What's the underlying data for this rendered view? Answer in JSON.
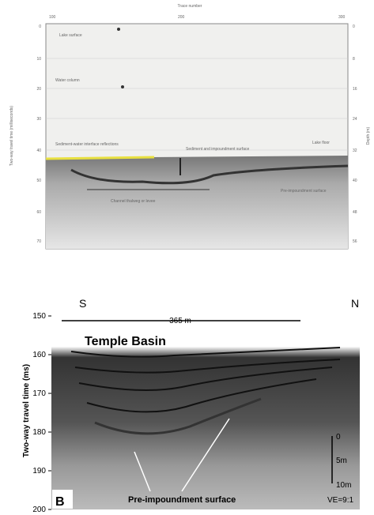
{
  "panel_a": {
    "title": "Trace number",
    "x_ticks": [
      "100",
      "200",
      "300"
    ],
    "y_label": "Two-way travel time (milliseconds)",
    "y_ticks": [
      "0",
      "10",
      "20",
      "30",
      "40",
      "50",
      "60",
      "70"
    ],
    "y2_label": "Depth (m)",
    "y2_ticks": [
      "0",
      "8",
      "16",
      "24",
      "32",
      "40",
      "48",
      "56"
    ],
    "annotations": [
      "Lake surface",
      "Water column",
      "Sediment-water interface reflections",
      "Sediment and impoundment surface",
      "Lake floor",
      "Pre-impoundment surface",
      "Channel thalweg or levee"
    ]
  },
  "panel_b": {
    "panel_letter": "B",
    "left": "S",
    "right": "N",
    "distance": "365 m",
    "title": "Temple Basin",
    "y_label": "Two-way travel time (ms)",
    "y_ticks": [
      "150",
      "160",
      "170",
      "180",
      "190",
      "200"
    ],
    "scale": [
      "0",
      "5m",
      "10m"
    ],
    "ve": "VE=9:1",
    "annotation": "Pre-impoundment surface"
  }
}
